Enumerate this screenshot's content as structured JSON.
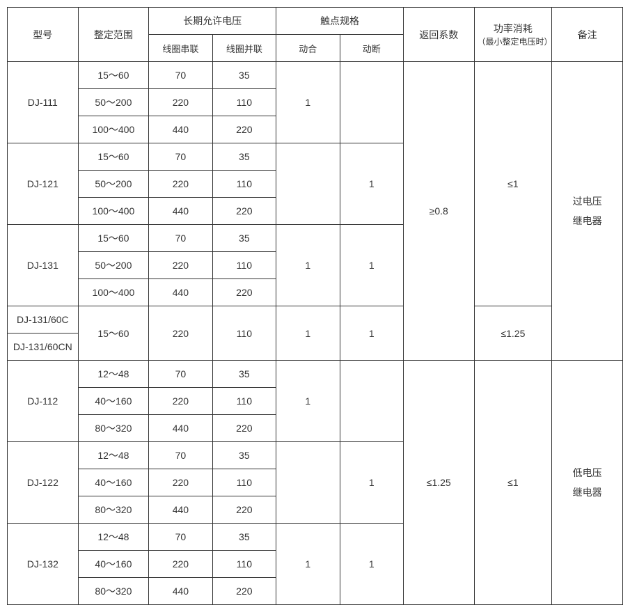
{
  "headers": {
    "model": "型号",
    "range": "整定范围",
    "longVoltage": "长期允许电压",
    "coilSeries": "线圈串联",
    "coilParallel": "线圈并联",
    "contactSpec": "触点规格",
    "close": "动合",
    "open": "动断",
    "returnCoef": "返回系数",
    "powerCons": "功率消耗",
    "powerConsNote": "（最小整定电压时）",
    "remark": "备注"
  },
  "rows": [
    {
      "range": "15～60",
      "series": "70",
      "parallel": "35"
    },
    {
      "range": "50～200",
      "series": "220",
      "parallel": "110"
    },
    {
      "range": "100～400",
      "series": "440",
      "parallel": "220"
    },
    {
      "range": "15～60",
      "series": "70",
      "parallel": "35"
    },
    {
      "range": "50～200",
      "series": "220",
      "parallel": "110"
    },
    {
      "range": "100～400",
      "series": "440",
      "parallel": "220"
    },
    {
      "range": "15～60",
      "series": "70",
      "parallel": "35"
    },
    {
      "range": "50～200",
      "series": "220",
      "parallel": "110"
    },
    {
      "range": "100～400",
      "series": "440",
      "parallel": "220"
    },
    {
      "range": "15～60",
      "series": "220",
      "parallel": "110"
    },
    {
      "range": "12～48",
      "series": "70",
      "parallel": "35"
    },
    {
      "range": "40～160",
      "series": "220",
      "parallel": "110"
    },
    {
      "range": "80～320",
      "series": "440",
      "parallel": "220"
    },
    {
      "range": "12～48",
      "series": "70",
      "parallel": "35"
    },
    {
      "range": "40～160",
      "series": "220",
      "parallel": "110"
    },
    {
      "range": "80～320",
      "series": "440",
      "parallel": "220"
    },
    {
      "range": "12～48",
      "series": "70",
      "parallel": "35"
    },
    {
      "range": "40～160",
      "series": "220",
      "parallel": "110"
    },
    {
      "range": "80～320",
      "series": "440",
      "parallel": "220"
    }
  ],
  "models": {
    "m111": "DJ-111",
    "m121": "DJ-121",
    "m131": "DJ-131",
    "m131c": "DJ-131/60C",
    "m131cn": "DJ-131/60CN",
    "m112": "DJ-112",
    "m122": "DJ-122",
    "m132": "DJ-132"
  },
  "contacts": {
    "close1": "1",
    "open1": "1",
    "close131": "1",
    "open131": "1",
    "close13160": "1",
    "open13160": "1",
    "close112": "1",
    "open122": "1",
    "close132": "1",
    "open132": "1"
  },
  "returnCoef": {
    "top": "≥0.8",
    "bottom": "≤1.25"
  },
  "power": {
    "le1": "≤1",
    "le125": "≤1.25",
    "le1b": "≤1"
  },
  "remarks": {
    "over": "过电压\n继电器",
    "under": "低电压\n继电器"
  }
}
